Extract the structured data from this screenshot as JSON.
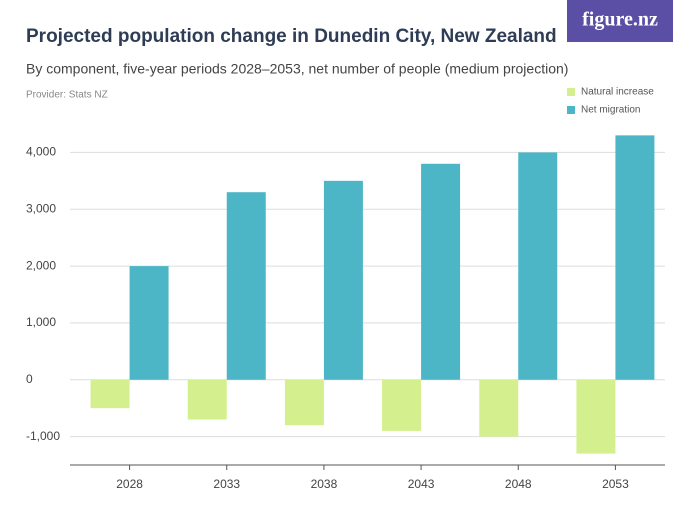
{
  "logo": "figure.nz",
  "chart_data": {
    "type": "bar",
    "title": "Projected population change in Dunedin City, New Zealand",
    "subtitle": "By component, five-year periods 2028–2053, net number of people (medium projection)",
    "provider": "Provider: Stats NZ",
    "categories": [
      "2028",
      "2033",
      "2038",
      "2043",
      "2048",
      "2053"
    ],
    "series": [
      {
        "name": "Natural increase",
        "color": "#d4f08e",
        "values": [
          -500,
          -700,
          -800,
          -900,
          -1000,
          -1300
        ]
      },
      {
        "name": "Net migration",
        "color": "#4db6c6",
        "values": [
          2000,
          3300,
          3500,
          3800,
          4000,
          4300
        ]
      }
    ],
    "ylim": [
      -1500,
      4500
    ],
    "yticks": [
      {
        "value": -1000,
        "label": "-1,000"
      },
      0,
      {
        "value": 1000,
        "label": "1,000"
      },
      {
        "value": 2000,
        "label": "2,000"
      },
      {
        "value": 3000,
        "label": "3,000"
      },
      {
        "value": 4000,
        "label": "4,000"
      }
    ],
    "grid": true
  }
}
